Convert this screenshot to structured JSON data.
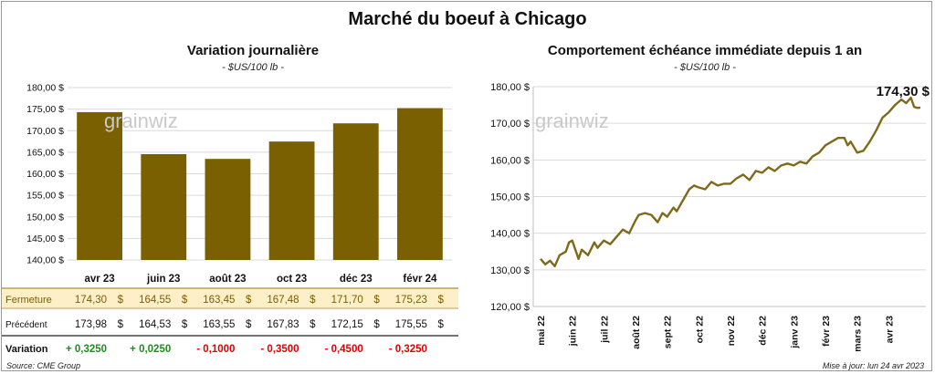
{
  "title": "Marché du boeuf à Chicago",
  "left_panel": {
    "title": "Variation  journalière",
    "unit": "- $US/100 lb -",
    "watermark": "grainwiz"
  },
  "right_panel": {
    "title": "Comportement  échéance immédiate depuis 1 an",
    "unit": "- $US/100 lb -",
    "watermark": "grainwiz",
    "last_value_label": "174,30 $"
  },
  "footer": {
    "source": "Source: CME Group",
    "updated": "Mise à jour: lun 24 avr 2023"
  },
  "colors": {
    "bar": "#7a6000",
    "line": "#7f6a1a",
    "fermeture_row_bg": "#fdf0c8",
    "positive": "#1e8c1e",
    "negative": "#e00000"
  },
  "chart_data": [
    {
      "type": "bar",
      "title": "Variation  journalière",
      "ylabel": "- $US/100 lb -",
      "categories": [
        "avr 23",
        "juin 23",
        "août 23",
        "oct 23",
        "déc 23",
        "févr 24"
      ],
      "values": [
        174.3,
        164.55,
        163.45,
        167.48,
        171.7,
        175.23
      ],
      "ylim": [
        140,
        180
      ],
      "yticks": [
        "140,00 $",
        "145,00 $",
        "150,00 $",
        "155,00 $",
        "160,00 $",
        "165,00 $",
        "170,00 $",
        "175,00 $",
        "180,00 $"
      ],
      "ytick_values": [
        140,
        145,
        150,
        155,
        160,
        165,
        170,
        175,
        180
      ],
      "grid": true,
      "table": {
        "rows": [
          {
            "label": "Fermeture",
            "cells": [
              "174,30",
              "164,55",
              "163,45",
              "167,48",
              "171,70",
              "175,23"
            ],
            "suffix": "$"
          },
          {
            "label": "Précédent",
            "cells": [
              "173,98",
              "164,53",
              "163,55",
              "167,83",
              "172,15",
              "175,55"
            ],
            "suffix": "$"
          },
          {
            "label": "Variation",
            "cells": [
              "+ 0,3250",
              "+ 0,0250",
              "- 0,1000",
              "- 0,3500",
              "- 0,4500",
              "- 0,3250"
            ]
          }
        ]
      }
    },
    {
      "type": "line",
      "title": "Comportement  échéance immédiate depuis 1 an",
      "ylabel": "- $US/100 lb -",
      "ylim": [
        120,
        180
      ],
      "yticks": [
        "120,00 $",
        "130,00 $",
        "140,00 $",
        "150,00 $",
        "160,00 $",
        "170,00 $",
        "180,00 $"
      ],
      "ytick_values": [
        120,
        130,
        140,
        150,
        160,
        170,
        180
      ],
      "xlim": [
        0,
        12
      ],
      "x_tick_labels": [
        "mai 22",
        "juin 22",
        "juil 22",
        "août 22",
        "sept 22",
        "oct 22",
        "nov 22",
        "déc 22",
        "janv 23",
        "févr 23",
        "mars 23",
        "avr 23"
      ],
      "x_tick_positions": [
        0,
        1,
        2,
        3,
        4,
        5,
        6,
        7,
        8,
        9,
        10,
        11
      ],
      "grid": true,
      "last_value": 174.3,
      "series": [
        {
          "x": [
            0.0,
            0.15,
            0.3,
            0.45,
            0.6,
            0.8,
            0.9,
            1.0,
            1.2,
            1.3,
            1.5,
            1.7,
            1.8,
            2.0,
            2.2,
            2.4,
            2.6,
            2.8,
            3.0,
            3.1,
            3.3,
            3.5,
            3.7,
            3.85,
            4.0,
            4.2,
            4.3,
            4.5,
            4.7,
            4.85,
            5.0,
            5.2,
            5.4,
            5.6,
            5.8,
            6.0,
            6.2,
            6.4,
            6.6,
            6.8,
            7.0,
            7.2,
            7.4,
            7.6,
            7.8,
            8.0,
            8.2,
            8.4,
            8.6,
            8.8,
            9.0,
            9.2,
            9.4,
            9.6,
            9.7,
            9.8,
            10.0,
            10.2,
            10.4,
            10.6,
            10.8,
            11.0,
            11.2,
            11.4,
            11.55,
            11.7,
            11.8,
            11.9,
            12.0
          ],
          "y": [
            133.0,
            131.5,
            132.5,
            131.0,
            134.0,
            135.0,
            137.5,
            138.0,
            133.0,
            135.5,
            134.0,
            137.5,
            136.0,
            138.0,
            137.0,
            139.0,
            141.0,
            140.0,
            143.5,
            145.0,
            145.5,
            145.0,
            143.0,
            145.5,
            144.5,
            147.0,
            146.0,
            149.0,
            152.0,
            153.0,
            152.5,
            152.0,
            154.0,
            153.0,
            153.5,
            153.5,
            155.0,
            156.0,
            154.5,
            157.0,
            156.5,
            158.0,
            157.0,
            158.5,
            159.0,
            158.5,
            159.5,
            159.0,
            161.0,
            162.0,
            164.0,
            165.0,
            166.0,
            166.0,
            164.0,
            165.0,
            162.0,
            162.5,
            165.0,
            168.0,
            171.5,
            173.0,
            175.0,
            176.5,
            175.5,
            177.0,
            174.5,
            174.2,
            174.3
          ]
        }
      ]
    }
  ]
}
